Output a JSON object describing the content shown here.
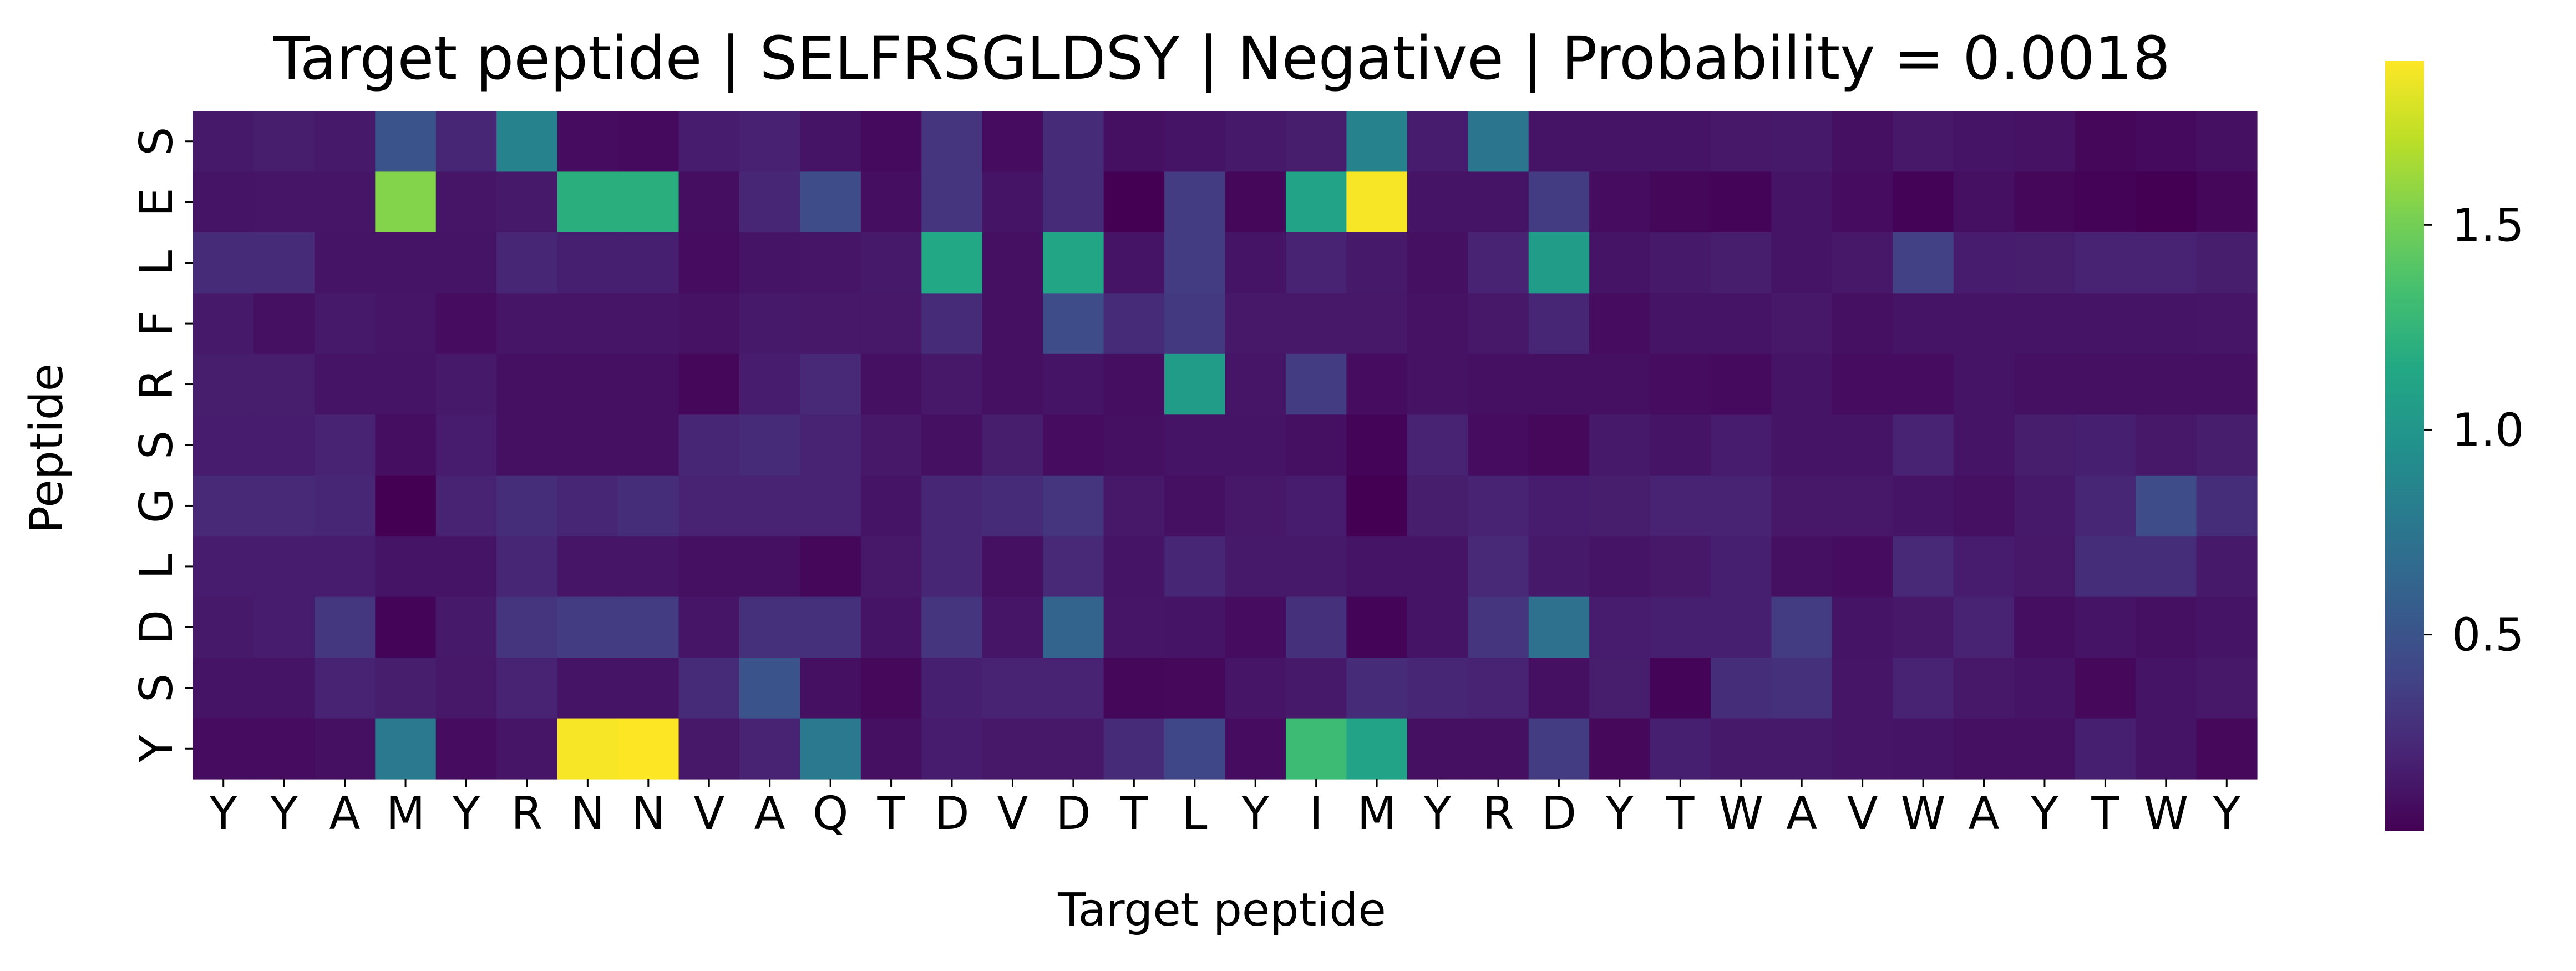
{
  "chart_data": {
    "type": "heatmap",
    "title": "Target peptide | SELFRSGLDSY | Negative | Probability = 0.0018",
    "xlabel": "Target peptide",
    "ylabel": "Peptide",
    "x_categories": [
      "Y",
      "Y",
      "A",
      "M",
      "Y",
      "R",
      "N",
      "N",
      "V",
      "A",
      "Q",
      "T",
      "D",
      "V",
      "D",
      "T",
      "L",
      "Y",
      "I",
      "M",
      "Y",
      "R",
      "D",
      "Y",
      "T",
      "W",
      "A",
      "V",
      "W",
      "A",
      "Y",
      "T",
      "W",
      "Y"
    ],
    "y_categories": [
      "S",
      "E",
      "L",
      "F",
      "R",
      "S",
      "G",
      "L",
      "D",
      "S",
      "Y"
    ],
    "colormap": "viridis",
    "vmin": 0.02,
    "vmax": 1.9,
    "colorbar_ticks": [
      0.5,
      1.0,
      1.5
    ],
    "colorbar_tick_labels": [
      "0.5",
      "1.0",
      "1.5"
    ],
    "values": [
      [
        0.15,
        0.17,
        0.15,
        0.5,
        0.22,
        0.85,
        0.08,
        0.07,
        0.16,
        0.19,
        0.12,
        0.07,
        0.3,
        0.08,
        0.25,
        0.1,
        0.12,
        0.15,
        0.17,
        0.85,
        0.16,
        0.75,
        0.12,
        0.12,
        0.12,
        0.14,
        0.15,
        0.1,
        0.14,
        0.12,
        0.11,
        0.05,
        0.07,
        0.1
      ],
      [
        0.12,
        0.13,
        0.13,
        1.55,
        0.13,
        0.15,
        1.2,
        1.2,
        0.09,
        0.22,
        0.45,
        0.09,
        0.3,
        0.12,
        0.25,
        0.02,
        0.35,
        0.05,
        1.1,
        1.88,
        0.12,
        0.12,
        0.35,
        0.08,
        0.05,
        0.04,
        0.12,
        0.08,
        0.03,
        0.1,
        0.05,
        0.03,
        0.02,
        0.05
      ],
      [
        0.25,
        0.25,
        0.12,
        0.12,
        0.12,
        0.22,
        0.18,
        0.18,
        0.08,
        0.12,
        0.13,
        0.15,
        1.15,
        0.1,
        1.12,
        0.12,
        0.35,
        0.12,
        0.2,
        0.15,
        0.1,
        0.2,
        1.05,
        0.12,
        0.15,
        0.17,
        0.12,
        0.14,
        0.38,
        0.16,
        0.17,
        0.2,
        0.2,
        0.17
      ],
      [
        0.15,
        0.1,
        0.15,
        0.13,
        0.08,
        0.13,
        0.13,
        0.13,
        0.11,
        0.15,
        0.14,
        0.14,
        0.25,
        0.1,
        0.45,
        0.25,
        0.33,
        0.14,
        0.14,
        0.14,
        0.11,
        0.14,
        0.22,
        0.08,
        0.12,
        0.12,
        0.14,
        0.1,
        0.12,
        0.12,
        0.12,
        0.12,
        0.12,
        0.13
      ],
      [
        0.17,
        0.17,
        0.12,
        0.12,
        0.15,
        0.1,
        0.1,
        0.1,
        0.05,
        0.16,
        0.24,
        0.1,
        0.14,
        0.1,
        0.12,
        0.09,
        1.05,
        0.13,
        0.35,
        0.08,
        0.11,
        0.1,
        0.1,
        0.1,
        0.08,
        0.07,
        0.12,
        0.08,
        0.08,
        0.12,
        0.1,
        0.1,
        0.1,
        0.1
      ],
      [
        0.16,
        0.16,
        0.2,
        0.09,
        0.16,
        0.1,
        0.1,
        0.1,
        0.22,
        0.25,
        0.2,
        0.14,
        0.1,
        0.17,
        0.08,
        0.1,
        0.12,
        0.12,
        0.1,
        0.04,
        0.2,
        0.08,
        0.06,
        0.15,
        0.12,
        0.16,
        0.12,
        0.12,
        0.2,
        0.12,
        0.17,
        0.18,
        0.14,
        0.17
      ],
      [
        0.24,
        0.24,
        0.22,
        0.02,
        0.2,
        0.26,
        0.22,
        0.26,
        0.2,
        0.2,
        0.2,
        0.12,
        0.22,
        0.25,
        0.3,
        0.14,
        0.1,
        0.14,
        0.16,
        0.02,
        0.17,
        0.2,
        0.16,
        0.17,
        0.2,
        0.2,
        0.14,
        0.14,
        0.12,
        0.1,
        0.15,
        0.22,
        0.45,
        0.26
      ],
      [
        0.16,
        0.16,
        0.16,
        0.12,
        0.12,
        0.22,
        0.13,
        0.13,
        0.1,
        0.1,
        0.05,
        0.14,
        0.22,
        0.1,
        0.24,
        0.12,
        0.22,
        0.15,
        0.15,
        0.12,
        0.12,
        0.24,
        0.15,
        0.12,
        0.14,
        0.18,
        0.1,
        0.08,
        0.24,
        0.16,
        0.14,
        0.26,
        0.26,
        0.15
      ],
      [
        0.15,
        0.16,
        0.32,
        0.04,
        0.15,
        0.3,
        0.35,
        0.35,
        0.13,
        0.28,
        0.28,
        0.12,
        0.3,
        0.13,
        0.62,
        0.13,
        0.12,
        0.08,
        0.28,
        0.04,
        0.12,
        0.3,
        0.72,
        0.16,
        0.18,
        0.18,
        0.35,
        0.12,
        0.14,
        0.2,
        0.09,
        0.12,
        0.1,
        0.12
      ],
      [
        0.12,
        0.12,
        0.2,
        0.17,
        0.14,
        0.2,
        0.12,
        0.12,
        0.25,
        0.5,
        0.1,
        0.06,
        0.18,
        0.2,
        0.2,
        0.05,
        0.06,
        0.13,
        0.15,
        0.25,
        0.22,
        0.2,
        0.1,
        0.17,
        0.04,
        0.26,
        0.28,
        0.13,
        0.2,
        0.14,
        0.12,
        0.06,
        0.12,
        0.14
      ],
      [
        0.08,
        0.08,
        0.1,
        0.78,
        0.08,
        0.13,
        1.88,
        1.9,
        0.14,
        0.2,
        0.78,
        0.1,
        0.16,
        0.14,
        0.14,
        0.25,
        0.42,
        0.08,
        1.3,
        1.1,
        0.1,
        0.1,
        0.35,
        0.06,
        0.18,
        0.15,
        0.15,
        0.13,
        0.12,
        0.1,
        0.1,
        0.18,
        0.12,
        0.06
      ]
    ]
  }
}
